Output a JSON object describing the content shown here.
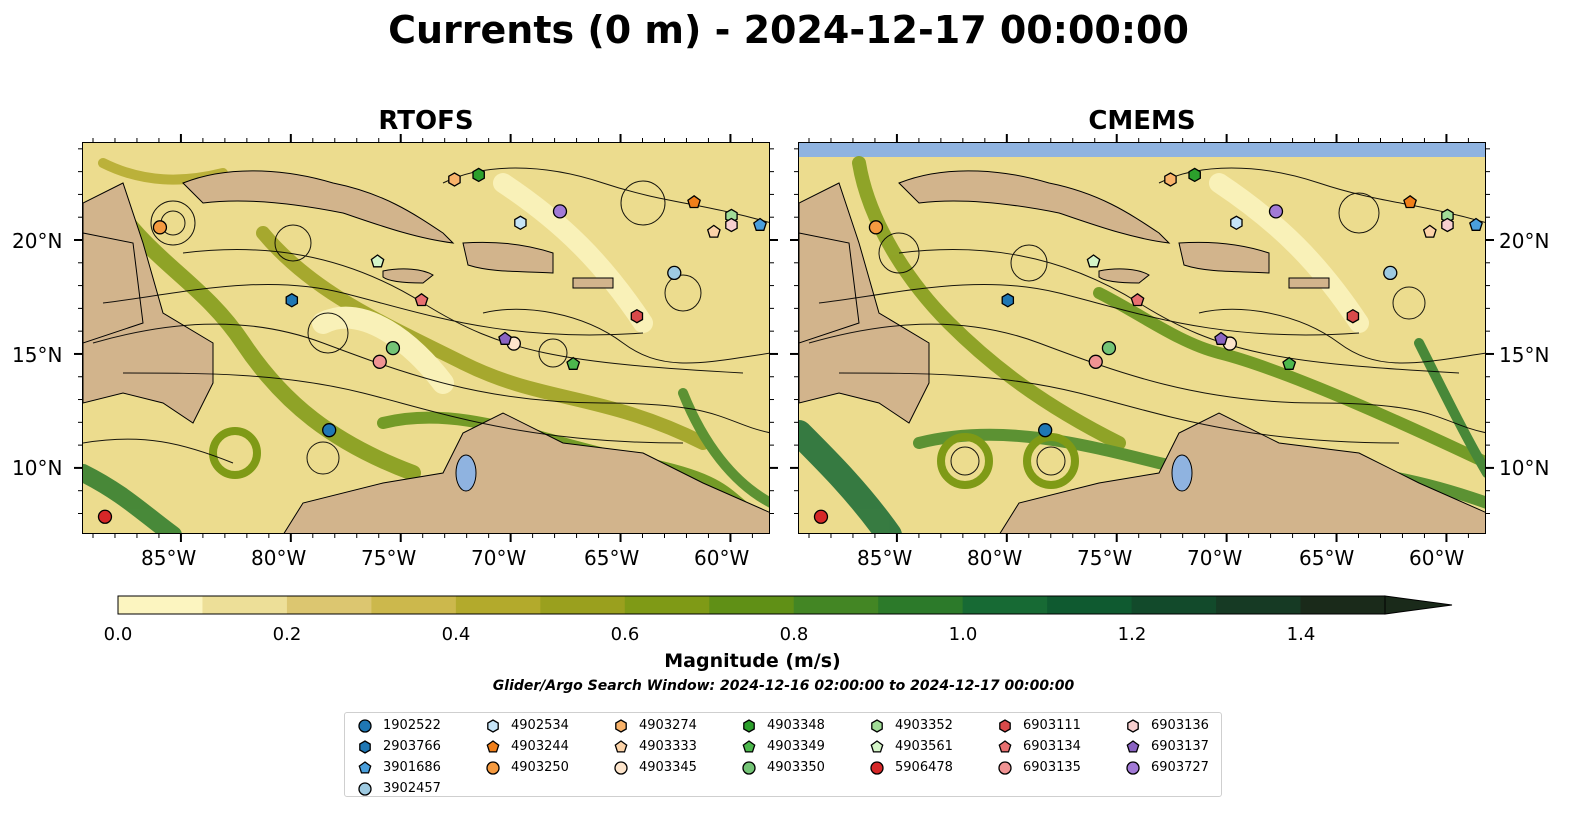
{
  "title": "Currents (0 m) - 2024-12-17 00:00:00",
  "panels": [
    {
      "title": "RTOFS"
    },
    {
      "title": "CMEMS"
    }
  ],
  "axes": {
    "lon_ticks": [
      "85°W",
      "80°W",
      "75°W",
      "70°W",
      "65°W",
      "60°W"
    ],
    "lat_ticks": [
      "20°N",
      "15°N",
      "10°N"
    ]
  },
  "colorbar": {
    "label": "Magnitude (m/s)",
    "tick_labels": [
      "0.0",
      "0.2",
      "0.4",
      "0.6",
      "0.8",
      "1.0",
      "1.2",
      "1.4"
    ],
    "range": [
      0,
      1.5
    ],
    "colors": [
      "#fcf5c0",
      "#eddf98",
      "#dcc670",
      "#ccb84c",
      "#b3aa2c",
      "#9aa01e",
      "#7f9a16",
      "#609016",
      "#438624",
      "#2c7a2a",
      "#176a34",
      "#0f5a30",
      "#124a2b",
      "#163a24",
      "#1a2a1a"
    ]
  },
  "search_window": "Glider/Argo Search Window: 2024-12-16 02:00:00 to 2024-12-17 00:00:00",
  "land_color": "#d2b48c",
  "water_color": "#8fb3e0",
  "legend": [
    {
      "id": "1902522",
      "marker": "circle",
      "color": "#1f77b4"
    },
    {
      "id": "2903766",
      "marker": "hexagon",
      "color": "#1f77b4"
    },
    {
      "id": "3901686",
      "marker": "pentagon",
      "color": "#4a9fdc"
    },
    {
      "id": "3902457",
      "marker": "circle",
      "color": "#9ecae1"
    },
    {
      "id": "4902534",
      "marker": "hexagon",
      "color": "#c6e4f7"
    },
    {
      "id": "4903244",
      "marker": "pentagon",
      "color": "#f07f1a"
    },
    {
      "id": "4903250",
      "marker": "circle",
      "color": "#f59a40"
    },
    {
      "id": "4903274",
      "marker": "hexagon",
      "color": "#f9b36a"
    },
    {
      "id": "4903333",
      "marker": "pentagon",
      "color": "#fcd3a8"
    },
    {
      "id": "4903345",
      "marker": "circle",
      "color": "#fde5cc"
    },
    {
      "id": "4903348",
      "marker": "hexagon",
      "color": "#2ca02c"
    },
    {
      "id": "4903349",
      "marker": "pentagon",
      "color": "#4db84d"
    },
    {
      "id": "4903350",
      "marker": "circle",
      "color": "#74c476"
    },
    {
      "id": "4903352",
      "marker": "hexagon",
      "color": "#a1dc97"
    },
    {
      "id": "4903561",
      "marker": "pentagon",
      "color": "#d4f5c8"
    },
    {
      "id": "5906478",
      "marker": "circle",
      "color": "#d62728"
    },
    {
      "id": "6903111",
      "marker": "hexagon",
      "color": "#d94a4a"
    },
    {
      "id": "6903134",
      "marker": "pentagon",
      "color": "#e87070"
    },
    {
      "id": "6903135",
      "marker": "circle",
      "color": "#f09393"
    },
    {
      "id": "6903136",
      "marker": "hexagon",
      "color": "#f7cfcf"
    },
    {
      "id": "6903137",
      "marker": "pentagon",
      "color": "#8a63c2"
    },
    {
      "id": "6903727",
      "marker": "circle",
      "color": "#a27ad6"
    }
  ],
  "floats": [
    {
      "id": "1902522",
      "lon": -78.3,
      "lat": 11.7
    },
    {
      "id": "2903766",
      "lon": -80.0,
      "lat": 17.4
    },
    {
      "id": "3901686",
      "lon": -58.7,
      "lat": 20.7
    },
    {
      "id": "3902457",
      "lon": -62.6,
      "lat": 18.6
    },
    {
      "id": "4902534",
      "lon": -69.6,
      "lat": 20.8
    },
    {
      "id": "4903244",
      "lon": -61.7,
      "lat": 21.7
    },
    {
      "id": "4903250",
      "lon": -86.0,
      "lat": 20.6
    },
    {
      "id": "4903274",
      "lon": -72.6,
      "lat": 22.7
    },
    {
      "id": "4903333",
      "lon": -60.8,
      "lat": 20.4
    },
    {
      "id": "4903345",
      "lon": -69.9,
      "lat": 15.5
    },
    {
      "id": "4903348",
      "lon": -71.5,
      "lat": 22.9
    },
    {
      "id": "4903349",
      "lon": -67.2,
      "lat": 14.6
    },
    {
      "id": "4903350",
      "lon": -75.4,
      "lat": 15.3
    },
    {
      "id": "4903352",
      "lon": -60.0,
      "lat": 21.1
    },
    {
      "id": "4903561",
      "lon": -76.1,
      "lat": 19.1
    },
    {
      "id": "5906478",
      "lon": -88.5,
      "lat": 7.9
    },
    {
      "id": "6903111",
      "lon": -64.3,
      "lat": 16.7
    },
    {
      "id": "6903134",
      "lon": -74.1,
      "lat": 17.4
    },
    {
      "id": "6903135",
      "lon": -76.0,
      "lat": 14.7
    },
    {
      "id": "6903136",
      "lon": -60.0,
      "lat": 20.7
    },
    {
      "id": "6903137",
      "lon": -70.3,
      "lat": 15.7
    },
    {
      "id": "6903727",
      "lon": -67.8,
      "lat": 21.3
    }
  ]
}
